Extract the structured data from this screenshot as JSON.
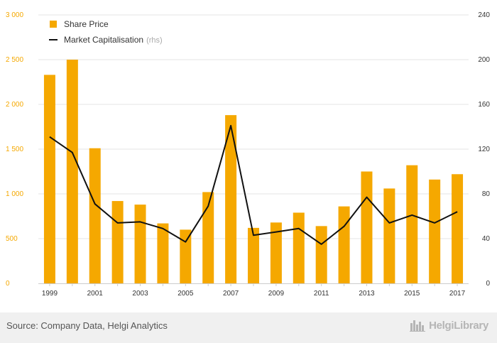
{
  "chart_data": {
    "type": "bar",
    "categories": [
      "1999",
      "2000",
      "2001",
      "2002",
      "2003",
      "2004",
      "2005",
      "2006",
      "2007",
      "2008",
      "2009",
      "2010",
      "2011",
      "2012",
      "2013",
      "2014",
      "2015",
      "2016",
      "2017"
    ],
    "x_tick_labels": [
      "1999",
      "2001",
      "2003",
      "2005",
      "2007",
      "2009",
      "2011",
      "2013",
      "2015",
      "2017"
    ],
    "series": [
      {
        "name": "Share Price",
        "type": "bar",
        "axis": "left",
        "values": [
          2330,
          2500,
          1510,
          920,
          880,
          670,
          600,
          1020,
          1880,
          620,
          680,
          790,
          640,
          860,
          1250,
          1060,
          1320,
          1160,
          1220
        ]
      },
      {
        "name": "Market Capitalisation",
        "name_suffix": "(rhs)",
        "type": "line",
        "axis": "right",
        "values": [
          131,
          117,
          71,
          54,
          55,
          49,
          37,
          69,
          141,
          43,
          46,
          49,
          35,
          51,
          77,
          54,
          61,
          54,
          64
        ]
      }
    ],
    "y_left": {
      "lim": [
        0,
        3000
      ],
      "ticks": [
        0,
        500,
        1000,
        1500,
        2000,
        2500,
        3000
      ],
      "tick_labels": [
        "0",
        "500",
        "1 000",
        "1 500",
        "2 000",
        "2 500",
        "3 000"
      ]
    },
    "y_right": {
      "lim": [
        0,
        240
      ],
      "ticks": [
        0,
        40,
        80,
        120,
        160,
        200,
        240
      ],
      "tick_labels": [
        "0",
        "40",
        "80",
        "120",
        "160",
        "200",
        "240"
      ]
    },
    "grid": true,
    "legend_position": "top-left",
    "colors": {
      "bar": "#f5a800",
      "line": "#111111",
      "grid": "#e6e6e6",
      "left_ticks": "#f5a800"
    }
  },
  "footer": {
    "source": "Source: Company Data, Helgi Analytics",
    "brand": "HelgiLibrary"
  }
}
